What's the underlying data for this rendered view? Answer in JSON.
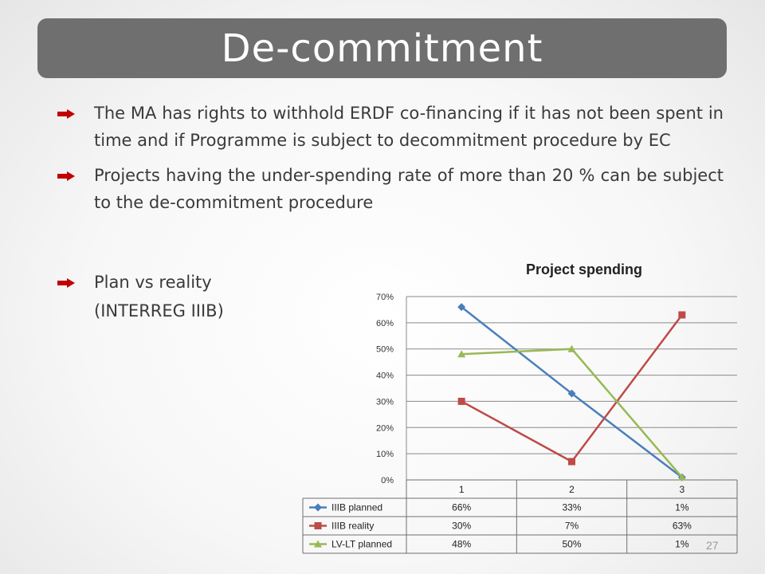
{
  "slide": {
    "title": "De-commitment",
    "bullets": [
      "The MA has rights to withhold ERDF co-financing if it has not been spent in time and if Programme is subject to decommitment procedure by EC",
      "Projects having the under-spending rate of more than 20 % can be subject to the de-commitment procedure",
      "Plan vs reality"
    ],
    "bullet3_sub": "(INTERREG IIIB)",
    "page_number": "27",
    "bullet_color": "#c00000"
  },
  "chart_data": {
    "type": "line",
    "title": "Project spending",
    "categories": [
      "1",
      "2",
      "3"
    ],
    "series": [
      {
        "name": "IIIB planned",
        "values": [
          66,
          33,
          1
        ],
        "labels": [
          "66%",
          "33%",
          "1%"
        ],
        "color": "#4a7ebb",
        "marker": "diamond"
      },
      {
        "name": "IIIB reality",
        "values": [
          30,
          7,
          63
        ],
        "labels": [
          "30%",
          "7%",
          "63%"
        ],
        "color": "#be4b48",
        "marker": "square"
      },
      {
        "name": "LV-LT planned",
        "values": [
          48,
          50,
          1
        ],
        "labels": [
          "48%",
          "50%",
          "1%"
        ],
        "color": "#98b954",
        "marker": "triangle"
      }
    ],
    "ylim": [
      0,
      70
    ],
    "yticks": [
      "0%",
      "10%",
      "20%",
      "30%",
      "40%",
      "50%",
      "60%",
      "70%"
    ],
    "grid": true,
    "legend": "data-table"
  }
}
